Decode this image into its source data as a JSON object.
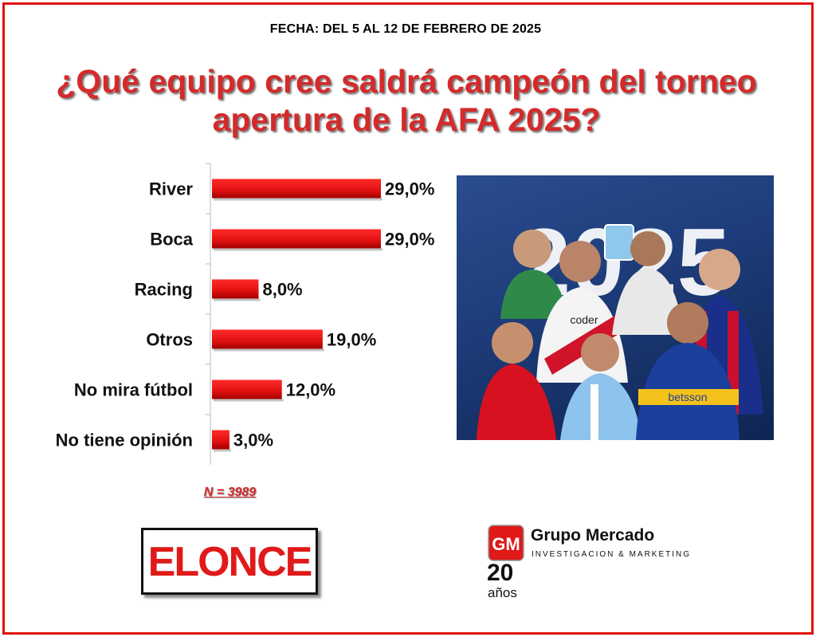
{
  "header": {
    "date": "FECHA: DEL 5 AL 12 DE FEBRERO DE 2025",
    "title_line1": "¿Qué equipo cree saldrá campeón del torneo",
    "title_line2": "apertura de la AFA 2025?"
  },
  "chart_data": {
    "type": "bar",
    "orientation": "horizontal",
    "categories": [
      "River",
      "Boca",
      "Racing",
      "Otros",
      "No mira fútbol",
      "No tiene opinión"
    ],
    "values": [
      29.0,
      29.0,
      8.0,
      19.0,
      12.0,
      3.0
    ],
    "value_labels": [
      "29,0%",
      "29,0%",
      "8,0%",
      "19,0%",
      "12,0%",
      "3,0%"
    ],
    "unit": "%",
    "xlim": [
      0,
      29
    ],
    "grid": false,
    "bar_color": "#e01010"
  },
  "sample_size": "N = 3989",
  "image": {
    "year": "2025",
    "sponsors": [
      "coder",
      "betsson"
    ]
  },
  "logos": {
    "elonce": "ELONCE",
    "gm_mark": "GM",
    "gm_name": "Grupo Mercado",
    "gm_subtitle": "INVESTIGACION & MARKETING",
    "gm_years": "20",
    "gm_years_label": "años"
  },
  "colors": {
    "frame": "#e01010",
    "title": "#d42a2a",
    "accent": "#e01919"
  }
}
